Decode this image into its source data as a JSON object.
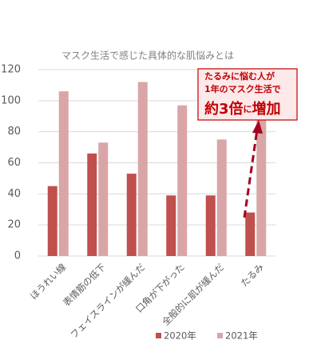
{
  "chart_data": {
    "type": "bar",
    "title": "マスク生活で感じた具体的な肌悩みとは",
    "categories": [
      "ほうれい線",
      "表情筋の低下",
      "フェイスラインが緩んだ",
      "口角が下がった",
      "全般的に肌が緩んだ",
      "たるみ"
    ],
    "series": [
      {
        "name": "2020年",
        "color": "#c0504d",
        "values": [
          45,
          66,
          53,
          39,
          39,
          28
        ]
      },
      {
        "name": "2021年",
        "color": "#d9a5a7",
        "values": [
          106,
          73,
          112,
          97,
          75,
          88
        ]
      }
    ],
    "ylim": [
      0,
      120
    ],
    "yticks": [
      0,
      20,
      40,
      60,
      80,
      100,
      120
    ],
    "grid": true,
    "legend": "bottom",
    "annotation": {
      "lines": [
        "たるみに悩む人が",
        "1年のマスク生活で"
      ],
      "emphasis": [
        "約3倍",
        "に",
        "増加"
      ]
    }
  }
}
